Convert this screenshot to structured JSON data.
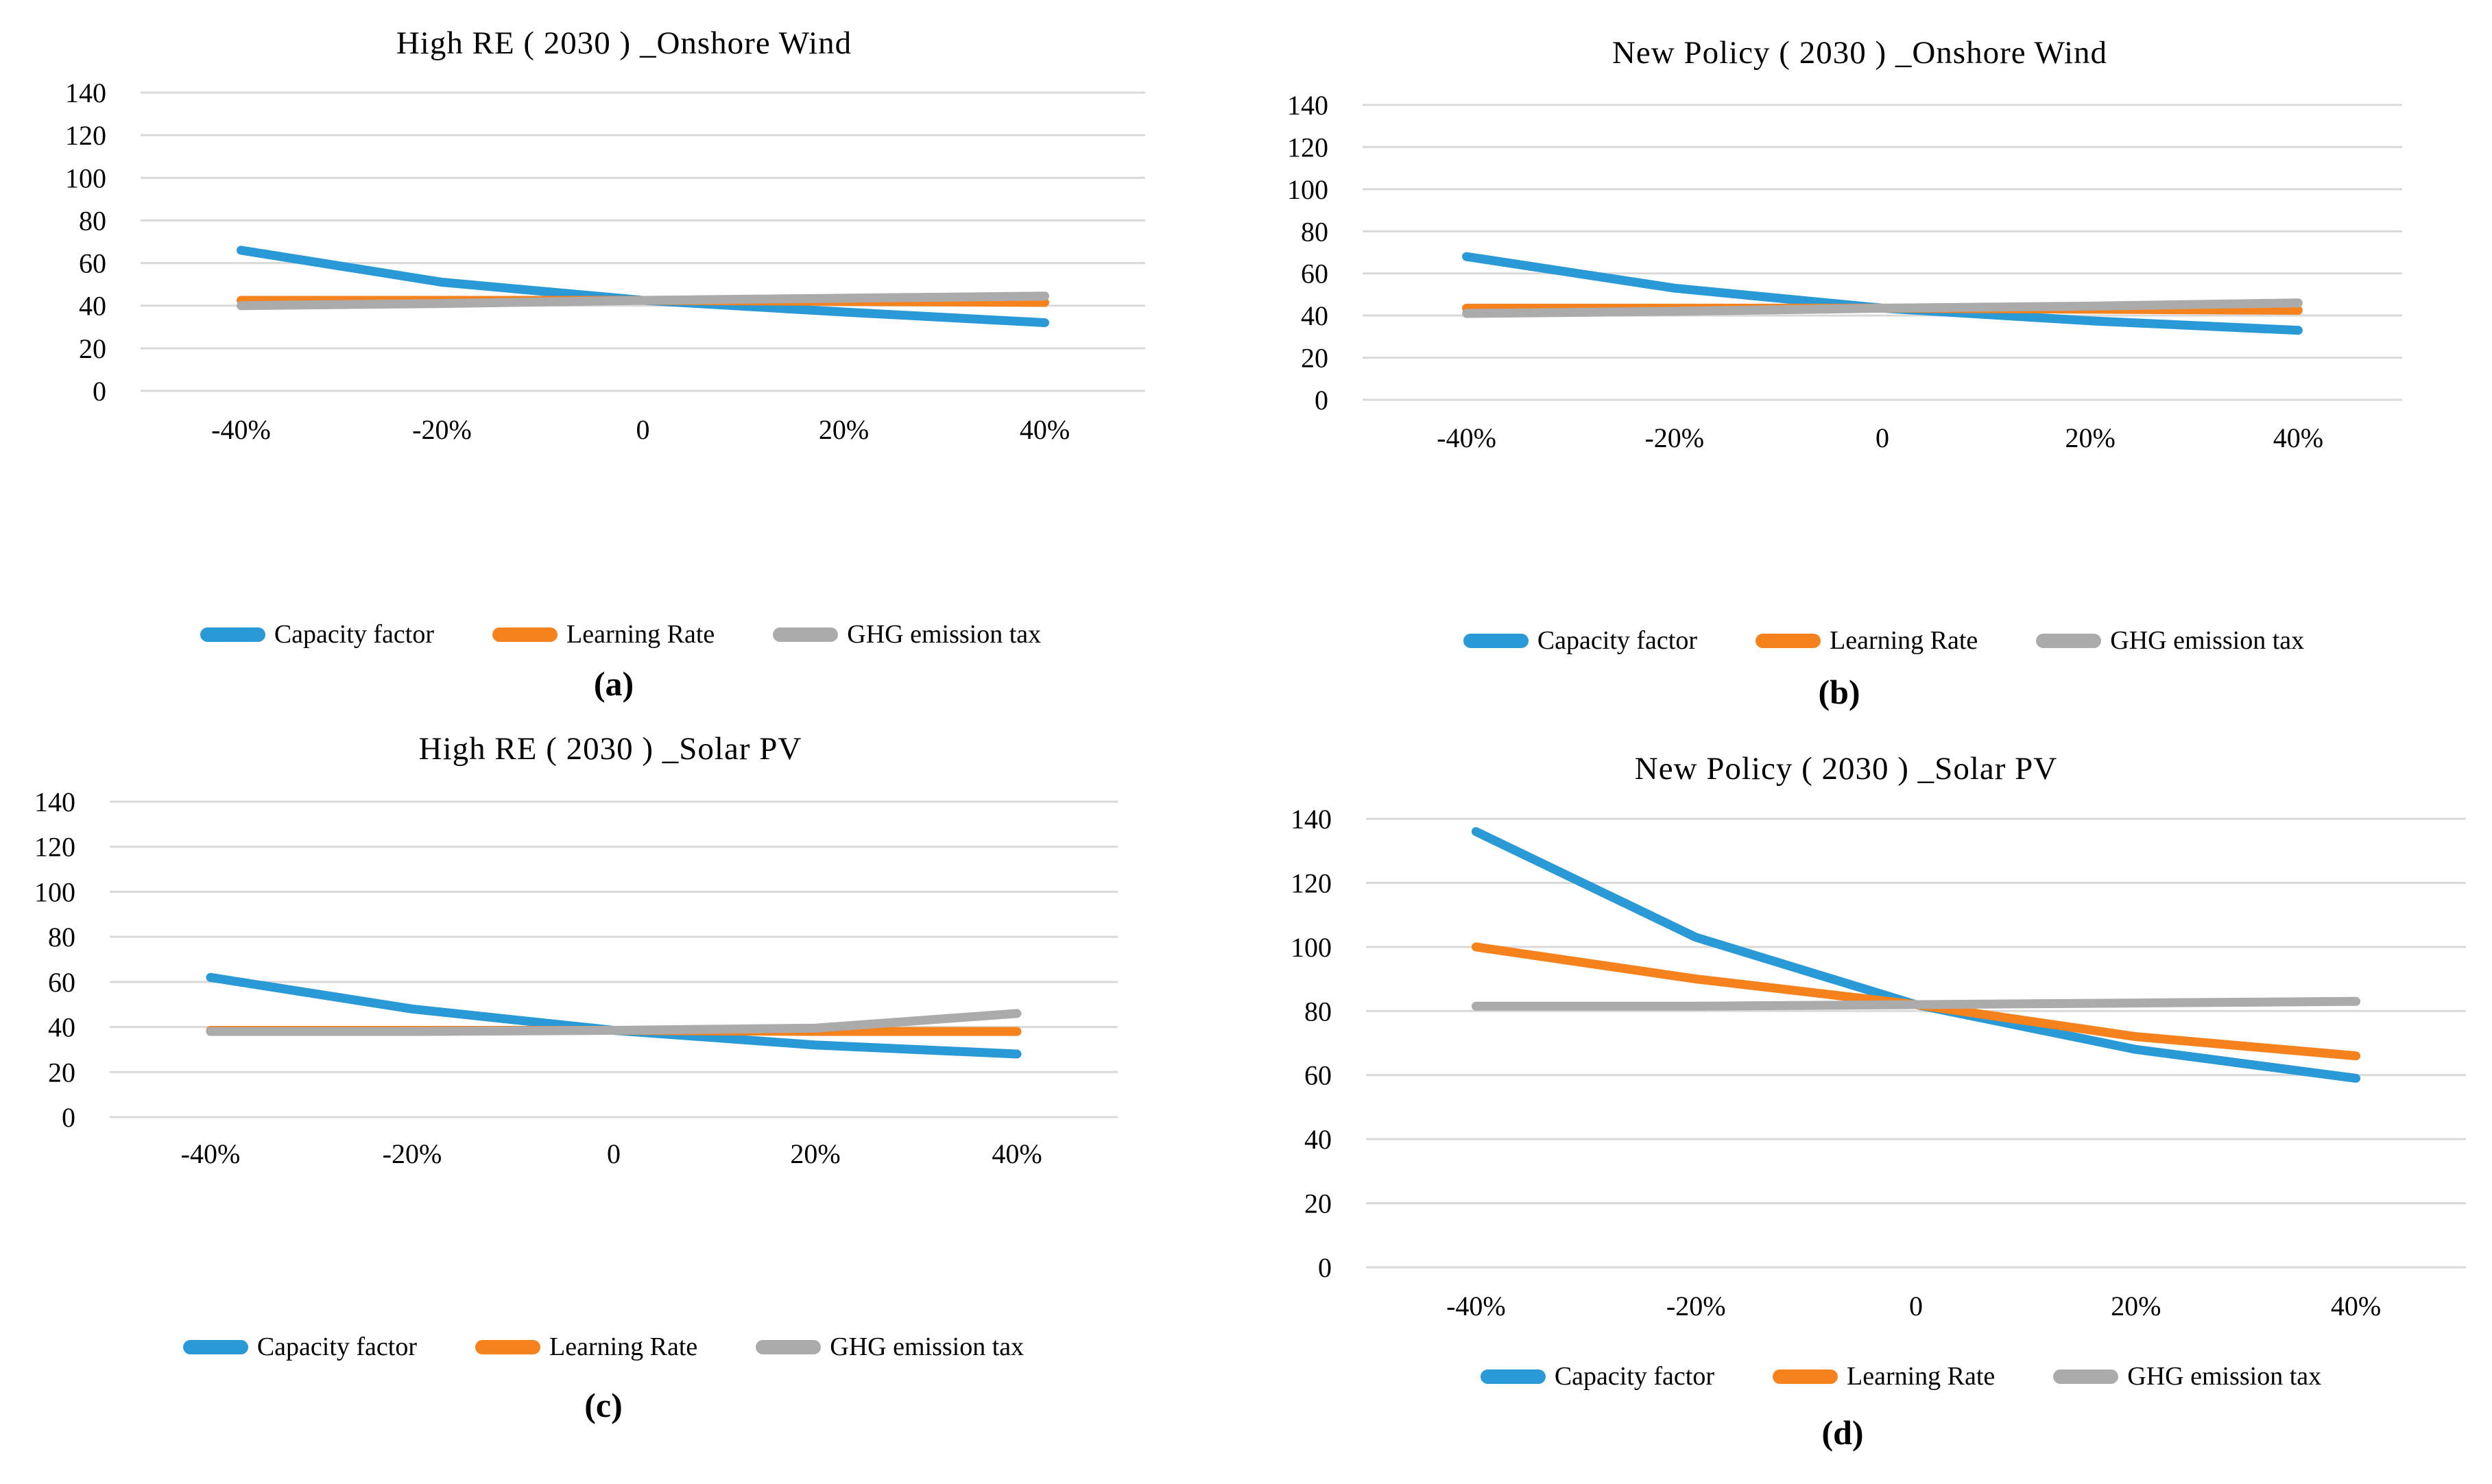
{
  "colors": {
    "capacity_factor": "#2A9AD7",
    "learning_rate": "#F6821E",
    "ghg_emission_tax": "#ABABAB",
    "gridline": "#D9D9D9",
    "text": "#000000"
  },
  "chart_data": [
    {
      "caption": "(a)",
      "title": "High RE ( 2030 ) _Onshore Wind",
      "type": "line",
      "categories": [
        "-40%",
        "-20%",
        "0",
        "20%",
        "40%"
      ],
      "xlabel": "",
      "ylabel": "",
      "ylim": [
        0,
        140
      ],
      "yticks": [
        140,
        120,
        100,
        80,
        60,
        40,
        20,
        0
      ],
      "grid": true,
      "legend_position": "bottom",
      "series": [
        {
          "name": "Capacity factor",
          "color": "#2A9AD7",
          "values": [
            66,
            51,
            42.5,
            37,
            32
          ]
        },
        {
          "name": "Learning Rate",
          "color": "#F6821E",
          "values": [
            42.5,
            42.5,
            42.5,
            42,
            41.5
          ]
        },
        {
          "name": "GHG emission tax",
          "color": "#ABABAB",
          "values": [
            40,
            41,
            42.5,
            43.5,
            44.5
          ]
        }
      ]
    },
    {
      "caption": "(b)",
      "title": "New Policy ( 2030 ) _Onshore Wind",
      "type": "line",
      "categories": [
        "-40%",
        "-20%",
        "0",
        "20%",
        "40%"
      ],
      "xlabel": "",
      "ylabel": "",
      "ylim": [
        0,
        140
      ],
      "yticks": [
        140,
        120,
        100,
        80,
        60,
        40,
        20,
        0
      ],
      "grid": true,
      "legend_position": "bottom",
      "series": [
        {
          "name": "Capacity factor",
          "color": "#2A9AD7",
          "values": [
            68,
            53,
            43.5,
            37.5,
            33
          ]
        },
        {
          "name": "Learning Rate",
          "color": "#F6821E",
          "values": [
            43.5,
            43.5,
            43.5,
            43,
            42.5
          ]
        },
        {
          "name": "GHG emission tax",
          "color": "#ABABAB",
          "values": [
            41,
            42,
            43.5,
            44.5,
            46
          ]
        }
      ]
    },
    {
      "caption": "(c)",
      "title": "High RE ( 2030 ) _Solar PV",
      "type": "line",
      "categories": [
        "-40%",
        "-20%",
        "0",
        "20%",
        "40%"
      ],
      "xlabel": "",
      "ylabel": "",
      "ylim": [
        0,
        140
      ],
      "yticks": [
        140,
        120,
        100,
        80,
        60,
        40,
        20,
        0
      ],
      "grid": true,
      "legend_position": "bottom",
      "series": [
        {
          "name": "Capacity factor",
          "color": "#2A9AD7",
          "values": [
            62,
            48,
            38.5,
            32,
            28
          ]
        },
        {
          "name": "Learning Rate",
          "color": "#F6821E",
          "values": [
            38.5,
            38.5,
            38.5,
            38,
            38
          ]
        },
        {
          "name": "GHG emission tax",
          "color": "#ABABAB",
          "values": [
            38,
            38,
            38.5,
            39.5,
            46
          ]
        }
      ]
    },
    {
      "caption": "(d)",
      "title": "New Policy ( 2030 ) _Solar PV",
      "type": "line",
      "categories": [
        "-40%",
        "-20%",
        "0",
        "20%",
        "40%"
      ],
      "xlabel": "",
      "ylabel": "",
      "ylim": [
        0,
        140
      ],
      "yticks": [
        140,
        120,
        100,
        80,
        60,
        40,
        20,
        0
      ],
      "grid": true,
      "legend_position": "bottom",
      "series": [
        {
          "name": "Capacity factor",
          "color": "#2A9AD7",
          "values": [
            136,
            103,
            82,
            68,
            59
          ]
        },
        {
          "name": "Learning Rate",
          "color": "#F6821E",
          "values": [
            100,
            90,
            82,
            72,
            66
          ]
        },
        {
          "name": "GHG emission tax",
          "color": "#ABABAB",
          "values": [
            81.5,
            81.5,
            82,
            82.5,
            83
          ]
        }
      ]
    }
  ]
}
